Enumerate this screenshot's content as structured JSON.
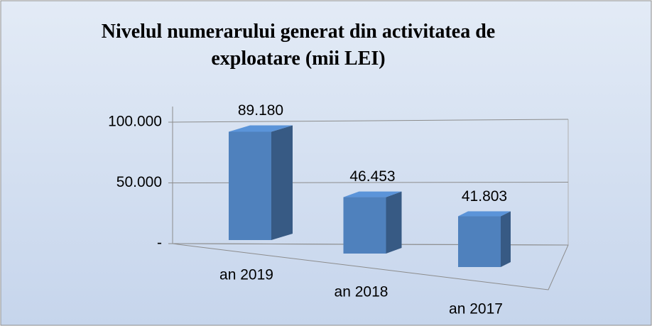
{
  "chart_data": {
    "type": "bar3d",
    "title": "Nivelul numerarului generat din activitatea de exploatare (mii LEI)",
    "categories": [
      "an 2019",
      "an 2018",
      "an 2017"
    ],
    "values": [
      89180,
      46453,
      41803
    ],
    "value_labels": [
      "89.180",
      "46.453",
      "41.803"
    ],
    "color": "#4f81bd",
    "ylim": [
      0,
      100000
    ],
    "yticks": [
      {
        "value": 0,
        "label": "-"
      },
      {
        "value": 50000,
        "label": "50.000"
      },
      {
        "value": 100000,
        "label": "100.000"
      }
    ],
    "grid": true
  }
}
